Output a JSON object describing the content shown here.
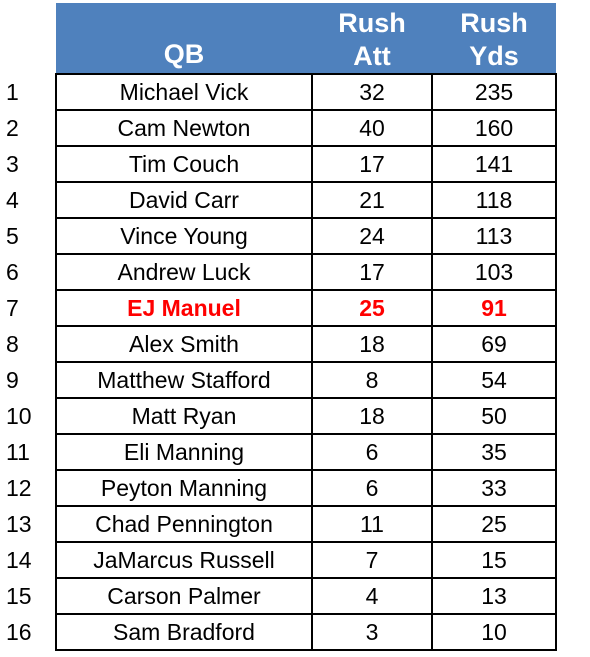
{
  "chart_data": {
    "type": "table",
    "columns": [
      "",
      "QB",
      "Rush Att",
      "Rush Yds"
    ],
    "header": {
      "qb": "QB",
      "att_line1": "Rush",
      "att_line2": "Att",
      "yds_line1": "Rush",
      "yds_line2": "Yds"
    },
    "rows": [
      {
        "rank": "1",
        "qb": "Michael Vick",
        "att": "32",
        "yds": "235"
      },
      {
        "rank": "2",
        "qb": "Cam Newton",
        "att": "40",
        "yds": "160"
      },
      {
        "rank": "3",
        "qb": "Tim Couch",
        "att": "17",
        "yds": "141"
      },
      {
        "rank": "4",
        "qb": "David Carr",
        "att": "21",
        "yds": "118"
      },
      {
        "rank": "5",
        "qb": "Vince Young",
        "att": "24",
        "yds": "113"
      },
      {
        "rank": "6",
        "qb": "Andrew Luck",
        "att": "17",
        "yds": "103"
      },
      {
        "rank": "7",
        "qb": "EJ Manuel",
        "att": "25",
        "yds": "91",
        "highlight": true
      },
      {
        "rank": "8",
        "qb": "Alex Smith",
        "att": "18",
        "yds": "69"
      },
      {
        "rank": "9",
        "qb": "Matthew Stafford",
        "att": "8",
        "yds": "54"
      },
      {
        "rank": "10",
        "qb": "Matt Ryan",
        "att": "18",
        "yds": "50"
      },
      {
        "rank": "11",
        "qb": "Eli Manning",
        "att": "6",
        "yds": "35"
      },
      {
        "rank": "12",
        "qb": "Peyton Manning",
        "att": "6",
        "yds": "33"
      },
      {
        "rank": "13",
        "qb": "Chad Pennington",
        "att": "11",
        "yds": "25"
      },
      {
        "rank": "14",
        "qb": "JaMarcus Russell",
        "att": "7",
        "yds": "15"
      },
      {
        "rank": "15",
        "qb": "Carson Palmer",
        "att": "4",
        "yds": "13"
      },
      {
        "rank": "16",
        "qb": "Sam Bradford",
        "att": "3",
        "yds": "10"
      }
    ],
    "colors": {
      "header_background": "#4f81bd",
      "header_text": "#ffffff",
      "highlight_text": "#ff0000"
    }
  }
}
